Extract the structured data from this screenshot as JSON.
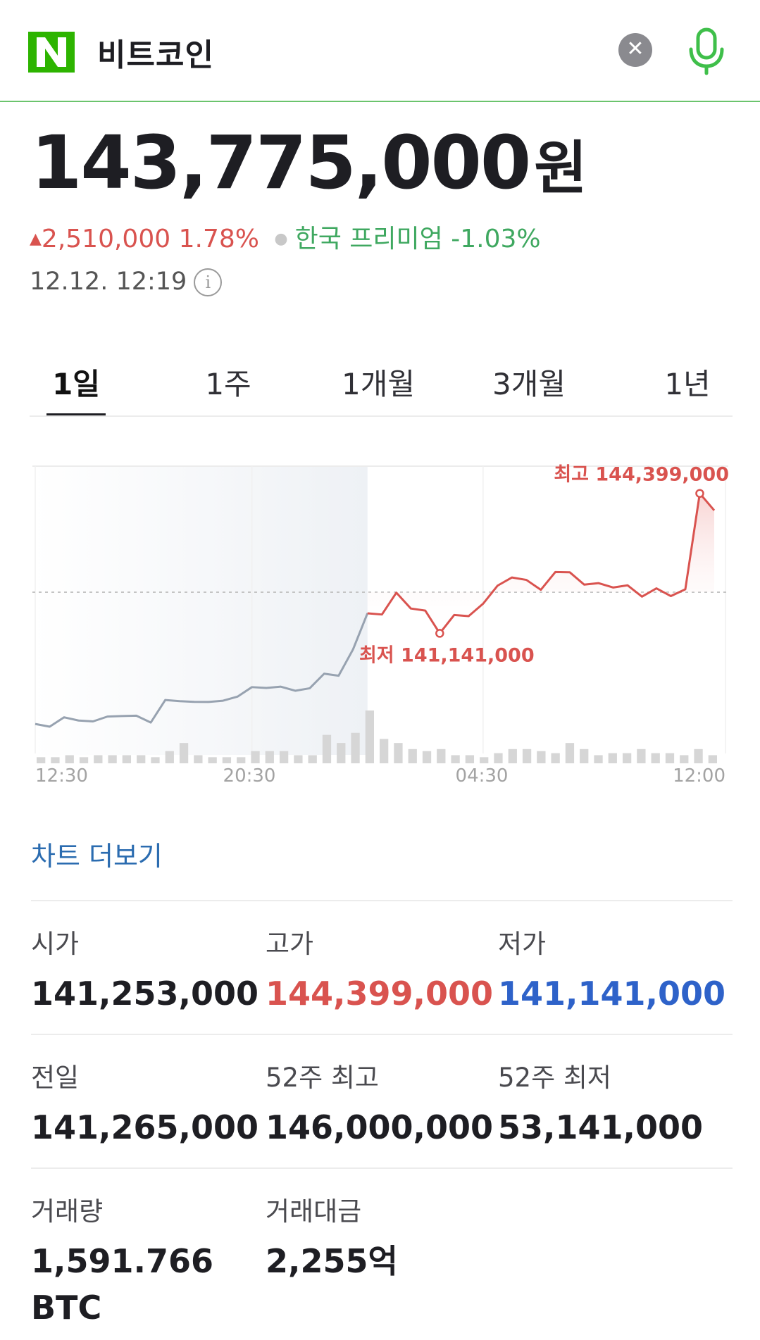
{
  "search": {
    "query": "비트코인",
    "clear_icon": "close-icon",
    "mic_icon": "microphone-icon",
    "brand_color": "#2db400"
  },
  "price": {
    "current": "143,775,000",
    "unit": "원",
    "change": "2,510,000",
    "change_pct": "1.78%",
    "premium": "한국 프리미엄 -1.03%",
    "timestamp": "12.12. 12:19",
    "up_color": "#d9534f",
    "premium_color": "#3fa860"
  },
  "tabs": [
    {
      "label": "1일",
      "active": true
    },
    {
      "label": "1주",
      "active": false
    },
    {
      "label": "1개월",
      "active": false
    },
    {
      "label": "3개월",
      "active": false
    },
    {
      "label": "1년",
      "active": false
    }
  ],
  "chart_data": {
    "type": "line",
    "x_tick_labels": [
      "12:30",
      "20:30",
      "04:30",
      "12:00"
    ],
    "high_label": "최고 144,399,000",
    "low_label": "최저 141,141,000",
    "high": 144399000,
    "low": 141141000,
    "reference_line": 142500000,
    "ylim": [
      139400000,
      144950000
    ],
    "grid": true,
    "past_color": "#97a2b0",
    "recent_color": "#d9534f",
    "past_series": [
      139967000,
      139914000,
      140095000,
      140033000,
      140016000,
      140109000,
      140119000,
      140126000,
      139994000,
      140427000,
      140405000,
      140391000,
      140390000,
      140414000,
      140492000,
      140675000,
      140659000,
      140684000,
      140605000,
      140653000,
      140933000,
      140894000,
      141401000,
      142094000
    ],
    "recent_series": [
      142094000,
      142071000,
      142490000,
      142186000,
      142146000,
      141709000,
      142061000,
      142040000,
      142278000,
      142625000,
      142783000,
      142736000,
      142546000,
      142887000,
      142883000,
      142645000,
      142674000,
      142590000,
      142632000,
      142415000,
      142574000,
      142425000,
      142556000,
      144399000,
      144073000
    ],
    "volume": [
      3,
      3,
      4,
      3,
      4,
      4,
      4,
      4,
      3,
      6,
      10,
      4,
      3,
      3,
      3,
      6,
      6,
      6,
      4,
      4,
      14,
      10,
      15,
      26,
      12,
      10,
      7,
      6,
      7,
      4,
      4,
      3,
      5,
      7,
      7,
      6,
      5,
      10,
      7,
      4,
      5,
      5,
      7,
      5,
      5,
      4,
      7,
      4
    ]
  },
  "more_chart": "차트 더보기",
  "stats": {
    "open": {
      "label": "시가",
      "value": "141,253,000"
    },
    "high": {
      "label": "고가",
      "value": "144,399,000"
    },
    "low": {
      "label": "저가",
      "value": "141,141,000"
    },
    "prev_close": {
      "label": "전일",
      "value": "141,265,000"
    },
    "high_52w": {
      "label": "52주 최고",
      "value": "146,000,000"
    },
    "low_52w": {
      "label": "52주 최저",
      "value": "53,141,000"
    },
    "volume": {
      "label": "거래량",
      "value": "1,591.766 BTC"
    },
    "trade_value": {
      "label": "거래대금",
      "value": "2,255억"
    }
  }
}
